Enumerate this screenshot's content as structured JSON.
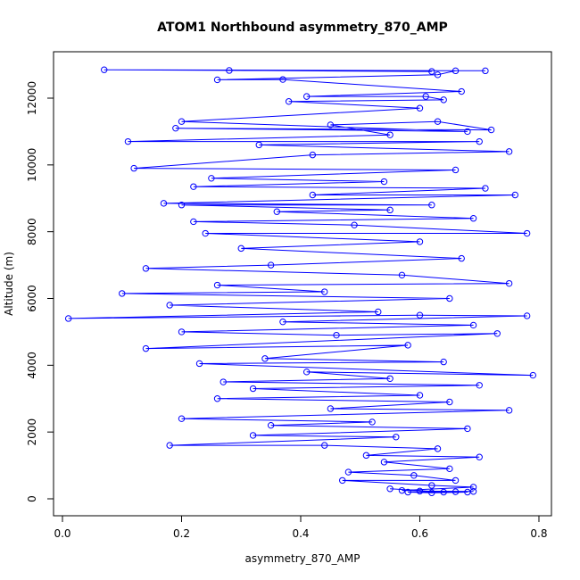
{
  "chart_data": {
    "type": "line",
    "title": "ATOM1 Northbound asymmetry_870_AMP",
    "x_label": "asymmetry_870_AMP",
    "y_label": "Altitude (m)",
    "xlim": [
      -0.015,
      0.821
    ],
    "ylim": [
      -508,
      13390
    ],
    "xticks": [
      {
        "value": 0,
        "label": "0.0"
      },
      0.2,
      0.4,
      0.6,
      0.8
    ],
    "yticks": [
      0,
      2000,
      4000,
      6000,
      8000,
      10000,
      12000
    ],
    "x": [
      0.62,
      0.07,
      0.71,
      0.28,
      0.66,
      0.63,
      0.26,
      0.37,
      0.67,
      0.41,
      0.61,
      0.64,
      0.38,
      0.6,
      0.2,
      0.68,
      0.19,
      0.72,
      0.63,
      0.45,
      0.55,
      0.11,
      0.7,
      0.33,
      0.75,
      0.42,
      0.12,
      0.66,
      0.25,
      0.54,
      0.22,
      0.71,
      0.42,
      0.76,
      0.17,
      0.62,
      0.2,
      0.55,
      0.36,
      0.69,
      0.22,
      0.49,
      0.78,
      0.24,
      0.6,
      0.3,
      0.67,
      0.35,
      0.14,
      0.57,
      0.75,
      0.26,
      0.44,
      0.1,
      0.65,
      0.18,
      0.53,
      0.01,
      0.6,
      0.78,
      0.37,
      0.69,
      0.2,
      0.46,
      0.73,
      0.14,
      0.58,
      0.34,
      0.64,
      0.23,
      0.79,
      0.41,
      0.55,
      0.27,
      0.7,
      0.32,
      0.6,
      0.26,
      0.65,
      0.45,
      0.75,
      0.2,
      0.52,
      0.35,
      0.68,
      0.32,
      0.56,
      0.18,
      0.44,
      0.63,
      0.51,
      0.7,
      0.54,
      0.65,
      0.48,
      0.59,
      0.66,
      0.47,
      0.62,
      0.69,
      0.57,
      0.68,
      0.62,
      0.58,
      0.66,
      0.69,
      0.6,
      0.64,
      0.55
    ],
    "series": [
      {
        "name": "asymmetry_870_AMP",
        "color": "#0000ff",
        "values": [
          12800,
          12850,
          12820,
          12830,
          12820,
          12700,
          12550,
          12560,
          12200,
          12050,
          12050,
          11950,
          11900,
          11700,
          11300,
          11000,
          11100,
          11050,
          11300,
          11200,
          10900,
          10700,
          10700,
          10600,
          10400,
          10300,
          9900,
          9850,
          9600,
          9500,
          9350,
          9300,
          9100,
          9100,
          8850,
          8800,
          8800,
          8650,
          8600,
          8400,
          8300,
          8200,
          7950,
          7950,
          7700,
          7500,
          7200,
          7000,
          6900,
          6700,
          6450,
          6400,
          6200,
          6150,
          6000,
          5800,
          5600,
          5400,
          5500,
          5480,
          5300,
          5200,
          5000,
          4900,
          4950,
          4500,
          4600,
          4200,
          4100,
          4050,
          3700,
          3800,
          3600,
          3500,
          3400,
          3300,
          3100,
          3000,
          2900,
          2700,
          2650,
          2400,
          2300,
          2200,
          2100,
          1900,
          1850,
          1600,
          1600,
          1500,
          1300,
          1250,
          1100,
          900,
          800,
          700,
          550,
          550,
          400,
          350,
          250,
          200,
          180,
          200,
          210,
          220,
          230,
          200,
          300
        ]
      }
    ]
  }
}
